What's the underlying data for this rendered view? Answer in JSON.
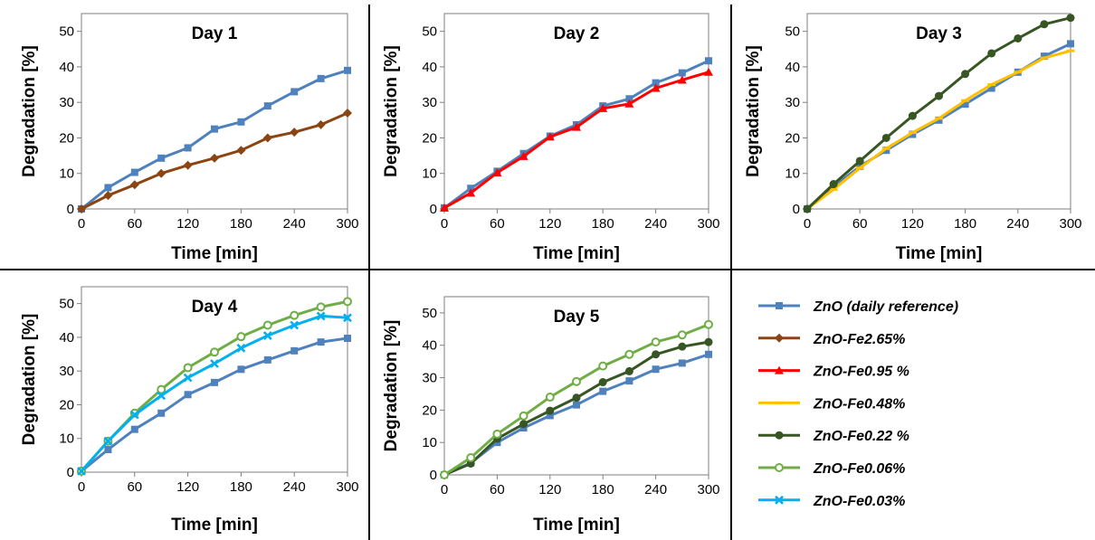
{
  "colors": {
    "ZnO (daily reference)": "#4f81bd",
    "ZnO-Fe2.65%": "#8b4513",
    "ZnO-Fe0.95 %": "#ff0000",
    "ZnO-Fe0.48%": "#ffc000",
    "ZnO-Fe0.22 %": "#375623",
    "ZnO-Fe0.06%": "#70ad47",
    "ZnO-Fe0.03%": "#00b0f0"
  },
  "markers": {
    "ZnO (daily reference)": "square",
    "ZnO-Fe2.65%": "diamond",
    "ZnO-Fe0.95 %": "triangle",
    "ZnO-Fe0.48%": "dash",
    "ZnO-Fe0.22 %": "circle",
    "ZnO-Fe0.06%": "circle-open",
    "ZnO-Fe0.03%": "x"
  },
  "legend": {
    "items": [
      "ZnO (daily reference)",
      "ZnO-Fe2.65%",
      "ZnO-Fe0.95 %",
      "ZnO-Fe0.48%",
      "ZnO-Fe0.22 %",
      "ZnO-Fe0.06%",
      "ZnO-Fe0.03%"
    ]
  },
  "chart_data": [
    {
      "type": "line",
      "title": "Day 1",
      "xlabel": "Time [min]",
      "ylabel": "Degradation [%]",
      "xlim": [
        0,
        300
      ],
      "ylim": [
        0,
        55
      ],
      "xticks": [
        0,
        60,
        120,
        180,
        240,
        300
      ],
      "yticks": [
        0,
        10,
        20,
        30,
        40,
        50
      ],
      "x": [
        0,
        30,
        60,
        90,
        120,
        150,
        180,
        210,
        240,
        270,
        300
      ],
      "series": [
        {
          "name": "ZnO (daily reference)",
          "values": [
            0,
            6,
            10.3,
            14.3,
            17.2,
            22.5,
            24.5,
            29,
            33,
            36.7,
            39
          ]
        },
        {
          "name": "ZnO-Fe2.65%",
          "values": [
            0,
            3.8,
            6.8,
            10,
            12.3,
            14.3,
            16.5,
            20,
            21.6,
            23.7,
            27
          ]
        }
      ]
    },
    {
      "type": "line",
      "title": "Day 2",
      "xlabel": "Time [min]",
      "ylabel": "Degradation [%]",
      "xlim": [
        0,
        300
      ],
      "ylim": [
        0,
        55
      ],
      "xticks": [
        0,
        60,
        120,
        180,
        240,
        300
      ],
      "yticks": [
        0,
        10,
        20,
        30,
        40,
        50
      ],
      "x": [
        0,
        30,
        60,
        90,
        120,
        150,
        180,
        210,
        240,
        270,
        300
      ],
      "series": [
        {
          "name": "ZnO (daily reference)",
          "values": [
            0.3,
            5.8,
            10.6,
            15.6,
            20.5,
            23.7,
            29,
            31,
            35.5,
            38.3,
            41.7
          ]
        },
        {
          "name": "ZnO-Fe0.95 %",
          "values": [
            0.3,
            4.5,
            10.2,
            14.8,
            20.3,
            23,
            28.3,
            29.6,
            34,
            36.3,
            38.5
          ]
        }
      ]
    },
    {
      "type": "line",
      "title": "Day 3",
      "xlabel": "Time [min]",
      "ylabel": "Degradation [%]",
      "xlim": [
        0,
        300
      ],
      "ylim": [
        0,
        55
      ],
      "xticks": [
        0,
        60,
        120,
        180,
        240,
        300
      ],
      "yticks": [
        0,
        10,
        20,
        30,
        40,
        50
      ],
      "x": [
        0,
        30,
        60,
        90,
        120,
        150,
        180,
        210,
        240,
        270,
        300
      ],
      "series": [
        {
          "name": "ZnO (daily reference)",
          "values": [
            0,
            6.3,
            12,
            16.5,
            21,
            25,
            29.5,
            34,
            38.5,
            43,
            46.5
          ]
        },
        {
          "name": "ZnO-Fe0.48%",
          "values": [
            0,
            5.5,
            11.5,
            17,
            21.5,
            25.5,
            30.5,
            35,
            38.5,
            42.5,
            44.5
          ]
        },
        {
          "name": "ZnO-Fe0.22 %",
          "values": [
            0,
            7,
            13.5,
            20,
            26.2,
            31.8,
            38,
            43.8,
            48,
            52,
            53.8
          ]
        }
      ]
    },
    {
      "type": "line",
      "title": "Day 4",
      "xlabel": "Time [min]",
      "ylabel": "Degradation [%]",
      "xlim": [
        0,
        300
      ],
      "ylim": [
        0,
        55
      ],
      "xticks": [
        0,
        60,
        120,
        180,
        240,
        300
      ],
      "yticks": [
        0,
        10,
        20,
        30,
        40,
        50
      ],
      "x": [
        0,
        30,
        60,
        90,
        120,
        150,
        180,
        210,
        240,
        270,
        300
      ],
      "series": [
        {
          "name": "ZnO (daily reference)",
          "values": [
            0.3,
            6.7,
            12.7,
            17.5,
            23,
            26.6,
            30.5,
            33.3,
            36,
            38.6,
            39.7
          ]
        },
        {
          "name": "ZnO-Fe0.06%",
          "values": [
            0.3,
            9.2,
            17.5,
            24.5,
            31,
            35.6,
            40.2,
            43.6,
            46.5,
            49,
            50.6
          ]
        },
        {
          "name": "ZnO-Fe0.03%",
          "values": [
            0.3,
            9.2,
            17,
            22.7,
            28,
            32.2,
            36.8,
            40.5,
            43.6,
            46.3,
            45.8
          ]
        }
      ]
    },
    {
      "type": "line",
      "title": "Day 5",
      "xlabel": "Time [min]",
      "ylabel": "Degradation [%]",
      "xlim": [
        0,
        300
      ],
      "ylim": [
        0,
        55
      ],
      "xticks": [
        0,
        60,
        120,
        180,
        240,
        300
      ],
      "yticks": [
        0,
        10,
        20,
        30,
        40,
        50
      ],
      "x": [
        0,
        30,
        60,
        90,
        120,
        150,
        180,
        210,
        240,
        270,
        300
      ],
      "series": [
        {
          "name": "ZnO (daily reference)",
          "values": [
            0,
            3.7,
            10,
            14.5,
            18.3,
            21.6,
            25.8,
            29,
            32.6,
            34.5,
            37.2
          ]
        },
        {
          "name": "ZnO-Fe0.22 %",
          "values": [
            0,
            3.5,
            11.2,
            15.7,
            19.8,
            23.8,
            28.6,
            32,
            37.2,
            39.6,
            41
          ]
        },
        {
          "name": "ZnO-Fe0.06%",
          "values": [
            0,
            5.3,
            12.6,
            18.2,
            24,
            28.8,
            33.6,
            37.2,
            41,
            43.2,
            46.4
          ]
        }
      ]
    }
  ]
}
